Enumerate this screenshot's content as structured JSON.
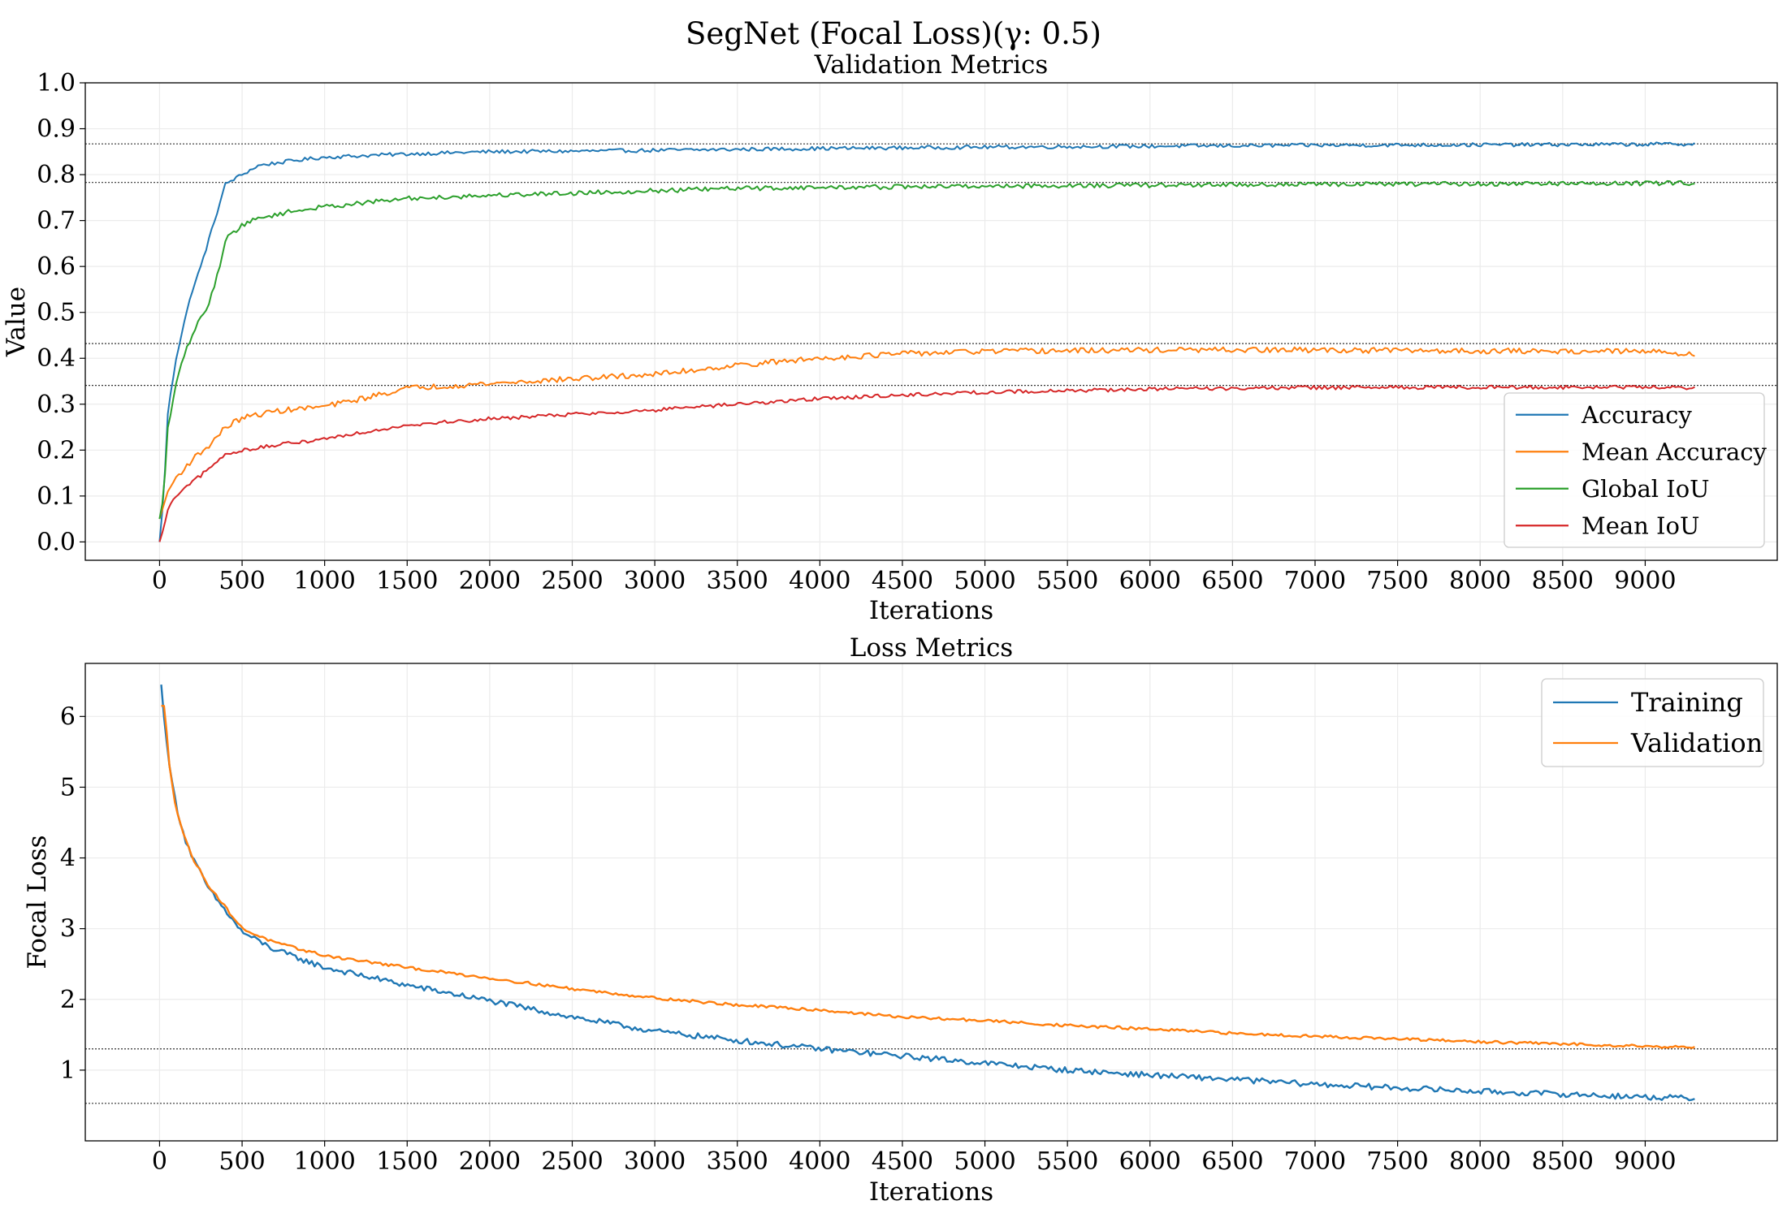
{
  "figure": {
    "suptitle": "SegNet (Focal Loss)(γ: 0.5)"
  },
  "chart_data": [
    {
      "type": "line",
      "title": "Validation Metrics",
      "xlabel": "Iterations",
      "ylabel": "Value",
      "xlim": [
        -450,
        9800
      ],
      "ylim": [
        -0.04,
        1.0
      ],
      "xticks": [
        0,
        500,
        1000,
        1500,
        2000,
        2500,
        3000,
        3500,
        4000,
        4500,
        5000,
        5500,
        6000,
        6500,
        7000,
        7500,
        8000,
        8500,
        9000
      ],
      "yticks": [
        0.0,
        0.1,
        0.2,
        0.3,
        0.4,
        0.5,
        0.6,
        0.7,
        0.8,
        0.9,
        1.0
      ],
      "ytick_labels": [
        "0.0",
        "0.1",
        "0.2",
        "0.3",
        "0.4",
        "0.5",
        "0.6",
        "0.7",
        "0.8",
        "0.9",
        "1.0"
      ],
      "grid": true,
      "legend_position": "lower-right",
      "reference_lines": [
        0.867,
        0.783,
        0.432,
        0.341
      ],
      "series": [
        {
          "name": "Accuracy",
          "color": "#1f77b4",
          "x": [
            0,
            25,
            50,
            100,
            150,
            200,
            250,
            300,
            350,
            400,
            500,
            600,
            800,
            1000,
            1500,
            2000,
            2500,
            3000,
            3500,
            4000,
            5000,
            6000,
            7000,
            8000,
            9000,
            9300
          ],
          "y": [
            0.0,
            0.1,
            0.28,
            0.4,
            0.48,
            0.55,
            0.6,
            0.66,
            0.72,
            0.78,
            0.8,
            0.82,
            0.83,
            0.838,
            0.845,
            0.85,
            0.851,
            0.853,
            0.855,
            0.857,
            0.86,
            0.862,
            0.864,
            0.865,
            0.866,
            0.867
          ],
          "noise": 0.004
        },
        {
          "name": "Mean Accuracy",
          "color": "#ff7f0e",
          "x": [
            0,
            25,
            50,
            100,
            200,
            300,
            400,
            500,
            700,
            1000,
            1200,
            1500,
            2000,
            2500,
            3000,
            3500,
            4000,
            4500,
            5000,
            6000,
            7000,
            8000,
            9000,
            9300
          ],
          "y": [
            0.05,
            0.08,
            0.11,
            0.14,
            0.18,
            0.21,
            0.25,
            0.27,
            0.285,
            0.295,
            0.31,
            0.335,
            0.345,
            0.355,
            0.365,
            0.385,
            0.4,
            0.41,
            0.415,
            0.418,
            0.418,
            0.416,
            0.415,
            0.41
          ],
          "noise": 0.006
        },
        {
          "name": "Global IoU",
          "color": "#2ca02c",
          "x": [
            0,
            25,
            50,
            100,
            150,
            200,
            250,
            300,
            350,
            400,
            500,
            600,
            800,
            1000,
            1500,
            2000,
            2500,
            3000,
            3500,
            4000,
            5000,
            6000,
            7000,
            8000,
            9000,
            9300
          ],
          "y": [
            0.05,
            0.1,
            0.25,
            0.34,
            0.41,
            0.45,
            0.49,
            0.52,
            0.58,
            0.66,
            0.69,
            0.705,
            0.72,
            0.73,
            0.748,
            0.755,
            0.76,
            0.765,
            0.77,
            0.772,
            0.775,
            0.777,
            0.779,
            0.78,
            0.781,
            0.782
          ],
          "noise": 0.005
        },
        {
          "name": "Mean IoU",
          "color": "#d62728",
          "x": [
            0,
            25,
            50,
            100,
            200,
            300,
            400,
            500,
            700,
            1000,
            1500,
            2000,
            2500,
            3000,
            3500,
            4000,
            4500,
            5000,
            6000,
            7000,
            8000,
            9000,
            9300
          ],
          "y": [
            0.0,
            0.03,
            0.07,
            0.1,
            0.13,
            0.16,
            0.19,
            0.2,
            0.21,
            0.225,
            0.255,
            0.268,
            0.278,
            0.287,
            0.3,
            0.312,
            0.32,
            0.326,
            0.333,
            0.336,
            0.337,
            0.337,
            0.336
          ],
          "noise": 0.004
        }
      ]
    },
    {
      "type": "line",
      "title": "Loss Metrics",
      "xlabel": "Iterations",
      "ylabel": "Focal Loss",
      "xlim": [
        -450,
        9800
      ],
      "ylim": [
        0.0,
        6.75
      ],
      "xticks": [
        0,
        500,
        1000,
        1500,
        2000,
        2500,
        3000,
        3500,
        4000,
        4500,
        5000,
        5500,
        6000,
        6500,
        7000,
        7500,
        8000,
        8500,
        9000
      ],
      "yticks": [
        1,
        2,
        3,
        4,
        5,
        6
      ],
      "ytick_labels": [
        "1",
        "2",
        "3",
        "4",
        "5",
        "6"
      ],
      "grid": true,
      "legend_position": "upper-right",
      "reference_lines": [
        1.3,
        0.53
      ],
      "series": [
        {
          "name": "Training",
          "color": "#1f77b4",
          "x": [
            10,
            30,
            60,
            100,
            150,
            200,
            300,
            400,
            500,
            700,
            1000,
            1300,
            1500,
            2000,
            2500,
            3000,
            3500,
            4000,
            4500,
            5000,
            5500,
            6000,
            6500,
            7000,
            7500,
            8000,
            8500,
            9000,
            9300
          ],
          "y": [
            6.45,
            5.9,
            5.3,
            4.75,
            4.3,
            4.0,
            3.55,
            3.25,
            2.95,
            2.7,
            2.45,
            2.3,
            2.2,
            1.98,
            1.75,
            1.55,
            1.42,
            1.3,
            1.2,
            1.1,
            1.0,
            0.93,
            0.87,
            0.8,
            0.75,
            0.7,
            0.66,
            0.62,
            0.6
          ],
          "noise": 0.04
        },
        {
          "name": "Validation",
          "color": "#ff7f0e",
          "x": [
            10,
            30,
            60,
            100,
            150,
            200,
            300,
            400,
            500,
            700,
            1000,
            1500,
            2000,
            2500,
            3000,
            3500,
            4000,
            4500,
            5000,
            5500,
            6000,
            6500,
            7000,
            7500,
            8000,
            8500,
            9000,
            9300
          ],
          "y": [
            6.15,
            6.15,
            5.3,
            4.7,
            4.3,
            4.0,
            3.6,
            3.3,
            3.0,
            2.8,
            2.62,
            2.45,
            2.3,
            2.15,
            2.02,
            1.92,
            1.85,
            1.75,
            1.7,
            1.63,
            1.58,
            1.52,
            1.48,
            1.44,
            1.4,
            1.37,
            1.34,
            1.32
          ],
          "noise": 0.02
        }
      ]
    }
  ]
}
